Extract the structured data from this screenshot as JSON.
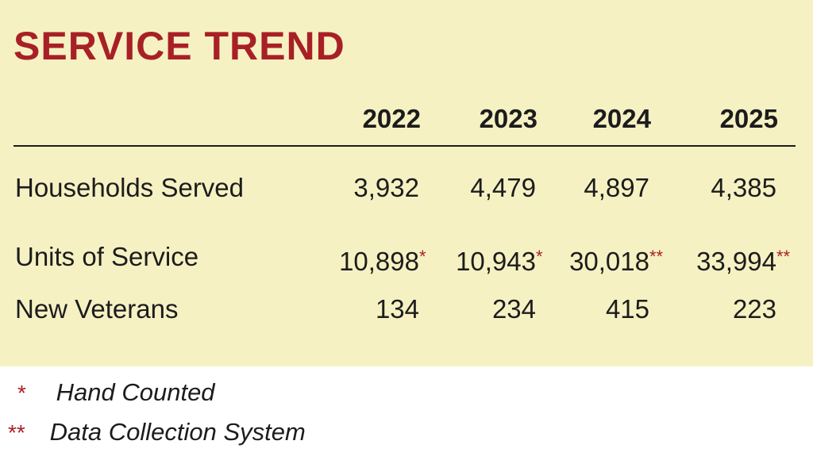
{
  "chart_data": {
    "type": "table",
    "title": "SERVICE TREND",
    "columns": [
      "2022",
      "2023",
      "2024",
      "2025"
    ],
    "rows": [
      {
        "label": "Households Served",
        "values": [
          "3,932",
          "4,479",
          "4,897",
          "4,385"
        ],
        "marks": [
          "",
          "",
          "",
          ""
        ]
      },
      {
        "label": "Units of Service",
        "values": [
          "10,898",
          "10,943",
          "30,018",
          "33,994"
        ],
        "marks": [
          "*",
          "*",
          "**",
          "**"
        ]
      },
      {
        "label": "New Veterans",
        "values": [
          "134",
          "234",
          "415",
          "223"
        ],
        "marks": [
          "",
          "",
          "",
          ""
        ]
      }
    ],
    "footnotes": [
      {
        "symbol": "*",
        "text": "Hand Counted"
      },
      {
        "symbol": "**",
        "text": "Data Collection System"
      }
    ]
  },
  "colors": {
    "panel_background": "#f6f1c3",
    "accent_red": "#a82026",
    "text": "#1c1c1c"
  }
}
